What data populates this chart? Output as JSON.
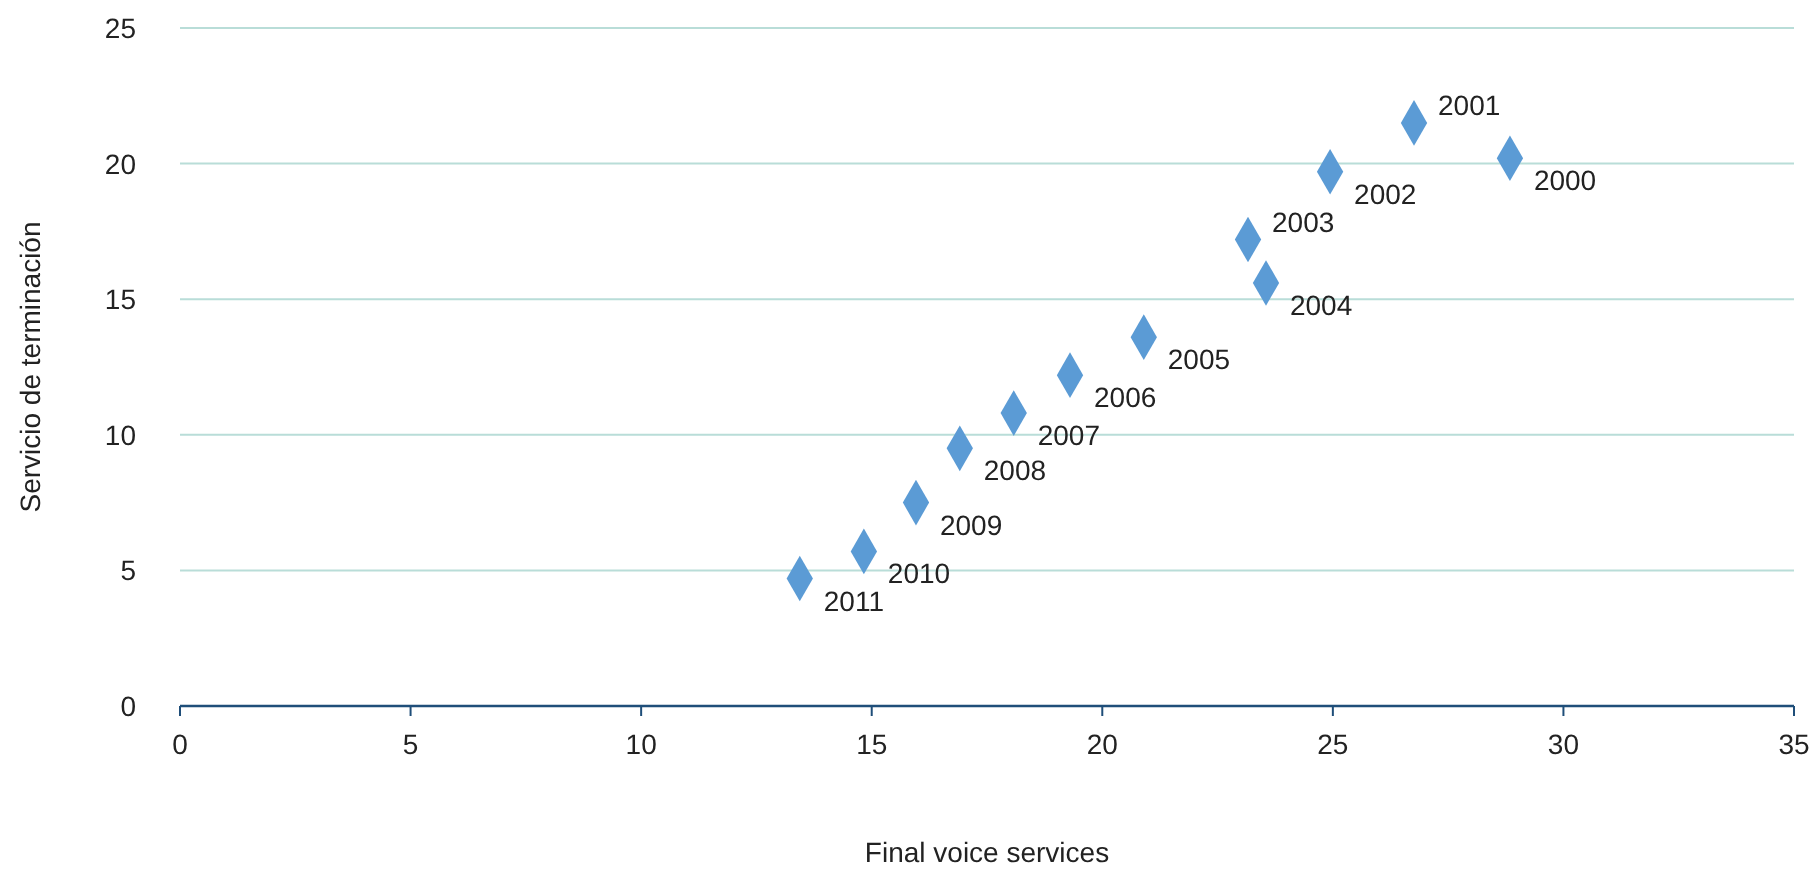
{
  "chart_data": {
    "type": "scatter",
    "xlabel": "Final voice services",
    "ylabel": "Servicio de terminación",
    "x": [
      28.84,
      26.76,
      24.94,
      23.16,
      23.55,
      20.9,
      19.3,
      18.08,
      16.91,
      15.96,
      14.83,
      13.44
    ],
    "values": [
      20.2,
      21.5,
      19.7,
      17.2,
      15.6,
      13.6,
      12.2,
      10.8,
      9.5,
      7.5,
      5.7,
      4.7
    ],
    "color": "#5b9bd5",
    "marker": "diamond",
    "grid": "y",
    "xlim": [
      0,
      35
    ],
    "xticks": [
      0,
      5,
      10,
      15,
      20,
      25,
      30,
      35
    ],
    "ylim": [
      0,
      25
    ],
    "yticks": [
      0,
      5,
      10,
      15,
      20,
      25
    ],
    "annotations": [
      {
        "text": "2000",
        "x": 28.84,
        "y": 20.2
      },
      {
        "text": "2001",
        "x": 26.76,
        "y": 21.5
      },
      {
        "text": "2002",
        "x": 24.94,
        "y": 19.7
      },
      {
        "text": "2003",
        "x": 23.16,
        "y": 17.2
      },
      {
        "text": "2004",
        "x": 23.55,
        "y": 15.6
      },
      {
        "text": "2005",
        "x": 20.9,
        "y": 13.6
      },
      {
        "text": "2006",
        "x": 19.3,
        "y": 12.2
      },
      {
        "text": "2007",
        "x": 18.08,
        "y": 10.8
      },
      {
        "text": "2008",
        "x": 16.91,
        "y": 9.5
      },
      {
        "text": "2009",
        "x": 15.96,
        "y": 7.5
      },
      {
        "text": "2010",
        "x": 14.83,
        "y": 5.7
      },
      {
        "text": "2011",
        "x": 13.44,
        "y": 4.7
      }
    ]
  }
}
